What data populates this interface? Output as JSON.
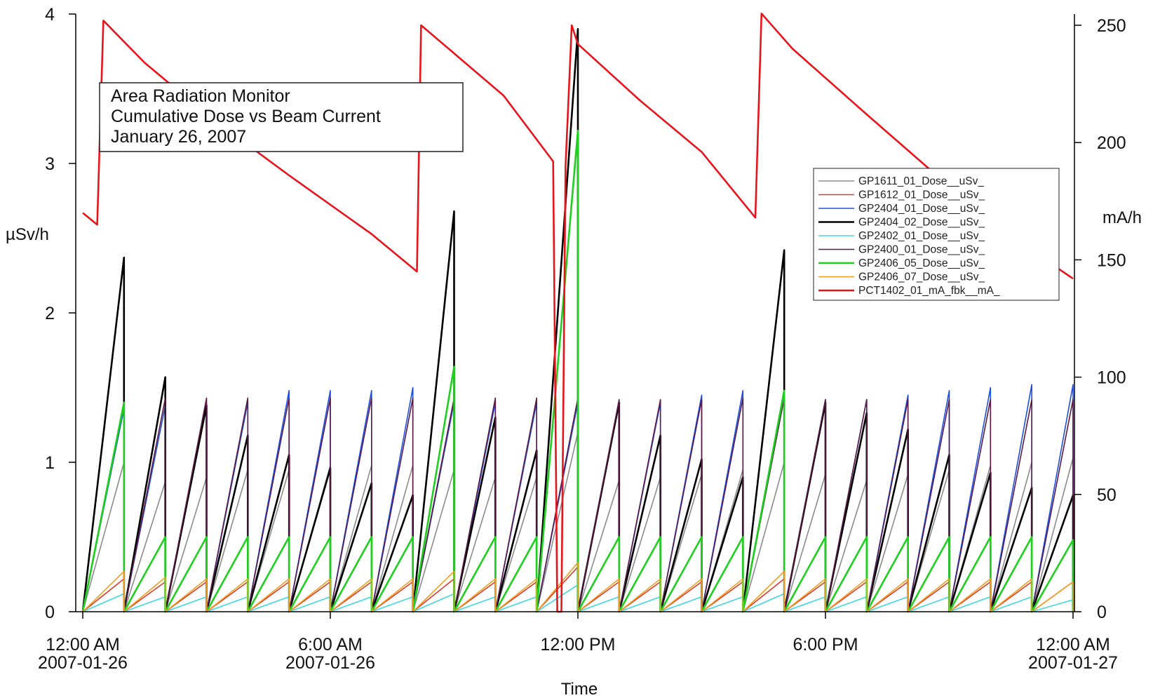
{
  "chart_data": {
    "type": "line",
    "annotation": [
      "Area Radiation Monitor",
      "Cumulative Dose vs Beam Current",
      "January 26, 2007"
    ],
    "xlabel": "Time",
    "ylabel_left": "µSv/h",
    "ylabel_right": "mA/h",
    "x_range_hours": [
      0,
      24
    ],
    "ylim_left": [
      0,
      4
    ],
    "ylim_right": [
      0,
      250
    ],
    "grid": false,
    "legend_position": "right",
    "x_ticks": [
      {
        "hour": 0,
        "label": "12:00 AM",
        "sublabel": "2007-01-26"
      },
      {
        "hour": 6,
        "label": "6:00 AM",
        "sublabel": "2007-01-26"
      },
      {
        "hour": 12,
        "label": "12:00 PM",
        "sublabel": ""
      },
      {
        "hour": 18,
        "label": "6:00 PM",
        "sublabel": ""
      },
      {
        "hour": 24,
        "label": "12:00 AM",
        "sublabel": "2007-01-27"
      }
    ],
    "y_left_ticks": [
      0,
      1,
      2,
      3,
      4
    ],
    "y_right_ticks": [
      0,
      50,
      100,
      150,
      200,
      250
    ],
    "cycle_resets_hours": [
      1.0,
      2.0,
      3.0,
      4.0,
      5.0,
      6.0,
      7.0,
      8.0,
      9.0,
      10.0,
      11.0,
      12.0,
      13.0,
      14.0,
      15.0,
      16.0,
      17.0,
      18.0,
      19.0,
      20.0,
      21.0,
      22.0,
      23.0,
      24.0
    ],
    "series": [
      {
        "name": "GP1611_01_Dose__uSv_",
        "color": "#8c8c8c",
        "axis": "left",
        "peaks": [
          1.0,
          0.87,
          0.9,
          0.95,
          0.95,
          0.98,
          0.98,
          0.98,
          0.95,
          0.9,
          0.9,
          1.2,
          0.88,
          0.9,
          0.92,
          0.95,
          1.0,
          0.92,
          0.88,
          0.92,
          0.95,
          0.98,
          1.0,
          1.03
        ]
      },
      {
        "name": "GP1612_01_Dose__uSv_",
        "color": "#e03a2a",
        "axis": "left",
        "peaks": [
          0.22,
          0.2,
          0.2,
          0.2,
          0.2,
          0.2,
          0.2,
          0.2,
          0.22,
          0.2,
          0.2,
          0.3,
          0.2,
          0.2,
          0.2,
          0.2,
          0.22,
          0.2,
          0.2,
          0.2,
          0.2,
          0.2,
          0.2,
          0.2
        ]
      },
      {
        "name": "GP2404_01_Dose__uSv_",
        "color": "#1f4fe0",
        "axis": "left",
        "peaks": [
          1.36,
          1.38,
          1.4,
          1.4,
          1.48,
          1.48,
          1.48,
          1.5,
          1.4,
          1.4,
          1.4,
          1.4,
          1.4,
          1.4,
          1.45,
          1.48,
          1.48,
          1.42,
          1.42,
          1.45,
          1.48,
          1.5,
          1.52,
          1.52
        ]
      },
      {
        "name": "GP2404_02_Dose__uSv_",
        "color": "#000000",
        "axis": "left",
        "peaks": [
          2.37,
          1.57,
          1.38,
          1.18,
          1.05,
          0.96,
          0.86,
          0.78,
          2.68,
          1.3,
          1.08,
          3.9,
          1.4,
          1.18,
          1.02,
          0.9,
          2.42,
          1.4,
          1.33,
          1.22,
          1.05,
          0.93,
          0.83,
          0.78
        ]
      },
      {
        "name": "GP2402_01_Dose__uSv_",
        "color": "#40d8e0",
        "axis": "left",
        "peaks": [
          0.12,
          0.1,
          0.1,
          0.1,
          0.1,
          0.1,
          0.1,
          0.1,
          0.12,
          0.1,
          0.1,
          0.18,
          0.1,
          0.1,
          0.1,
          0.1,
          0.12,
          0.1,
          0.1,
          0.1,
          0.1,
          0.1,
          0.1,
          0.08
        ]
      },
      {
        "name": "GP2400_01_Dose__uSv_",
        "color": "#5a1a48",
        "axis": "left",
        "peaks": [
          1.4,
          1.43,
          1.43,
          1.43,
          1.43,
          1.43,
          1.43,
          1.43,
          1.43,
          1.43,
          1.43,
          1.43,
          1.42,
          1.42,
          1.42,
          1.43,
          1.43,
          1.42,
          1.42,
          1.42,
          1.42,
          1.42,
          1.42,
          1.42
        ]
      },
      {
        "name": "GP2406_05_Dose__uSv_",
        "color": "#1ed01e",
        "axis": "left",
        "peaks": [
          1.4,
          0.5,
          0.5,
          0.5,
          0.5,
          0.5,
          0.5,
          0.5,
          1.64,
          0.5,
          0.5,
          3.22,
          0.5,
          0.5,
          0.5,
          0.5,
          1.48,
          0.5,
          0.5,
          0.5,
          0.5,
          0.5,
          0.5,
          0.48
        ]
      },
      {
        "name": "GP2406_07_Dose__uSv_",
        "color": "#f0a020",
        "axis": "left",
        "peaks": [
          0.27,
          0.23,
          0.22,
          0.22,
          0.22,
          0.22,
          0.22,
          0.22,
          0.27,
          0.22,
          0.22,
          0.33,
          0.22,
          0.22,
          0.22,
          0.22,
          0.27,
          0.22,
          0.22,
          0.22,
          0.22,
          0.22,
          0.22,
          0.2
        ]
      },
      {
        "name": "PCT1402_01_mA_fbk__mA_",
        "color": "#e8141c",
        "axis": "right",
        "points": [
          [
            0,
            170
          ],
          [
            0.35,
            165
          ],
          [
            0.5,
            252
          ],
          [
            1.5,
            234
          ],
          [
            3,
            212
          ],
          [
            5,
            186
          ],
          [
            7,
            161
          ],
          [
            8.1,
            145
          ],
          [
            8.2,
            250
          ],
          [
            9,
            238
          ],
          [
            10.2,
            220
          ],
          [
            11.4,
            192
          ],
          [
            11.5,
            0
          ],
          [
            11.6,
            0
          ],
          [
            11.7,
            190
          ],
          [
            11.85,
            250
          ],
          [
            12,
            242
          ],
          [
            13.5,
            218
          ],
          [
            15,
            196
          ],
          [
            16.3,
            168
          ],
          [
            16.45,
            255
          ],
          [
            17.2,
            240
          ],
          [
            19,
            212
          ],
          [
            22,
            166
          ],
          [
            24,
            142
          ]
        ]
      }
    ]
  }
}
